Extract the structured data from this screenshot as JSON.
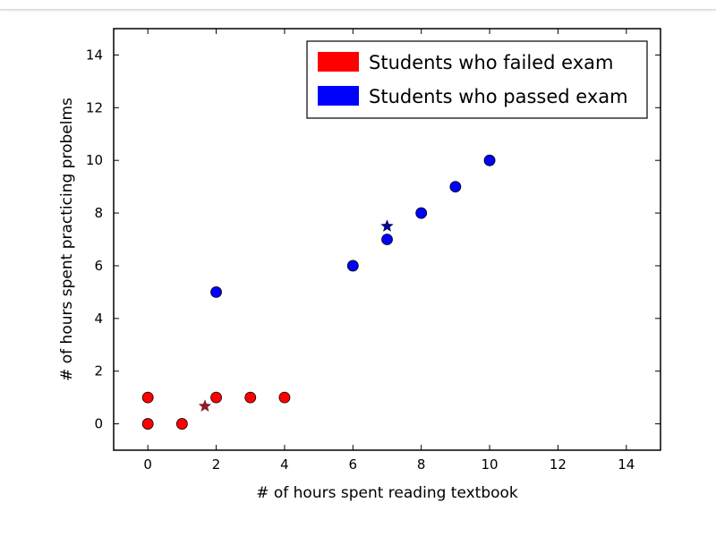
{
  "chart_data": {
    "type": "scatter",
    "xlabel": "# of hours spent reading textbook",
    "ylabel": "# of hours spent practicing probelms",
    "xlim": [
      -1,
      15
    ],
    "ylim": [
      -1,
      15
    ],
    "x_ticks": [
      0,
      2,
      4,
      6,
      8,
      10,
      12,
      14
    ],
    "y_ticks": [
      0,
      2,
      4,
      6,
      8,
      10,
      12,
      14
    ],
    "grid": false,
    "legend_position": "top-right",
    "series": [
      {
        "name": "Students who failed exam",
        "color": "#ff0000",
        "marker": "circle",
        "points": [
          [
            0,
            0
          ],
          [
            0,
            1
          ],
          [
            1,
            0
          ],
          [
            2,
            1
          ],
          [
            3,
            1
          ],
          [
            4,
            1
          ]
        ]
      },
      {
        "name": "Students who passed exam",
        "color": "#0000ff",
        "marker": "circle",
        "points": [
          [
            2,
            5
          ],
          [
            6,
            6
          ],
          [
            7,
            7
          ],
          [
            8,
            8
          ],
          [
            9,
            9
          ],
          [
            10,
            10
          ]
        ]
      }
    ],
    "centroids": [
      {
        "series": "Students who failed exam",
        "color": "#8b1a2a",
        "marker": "star",
        "x": 1.67,
        "y": 0.67
      },
      {
        "series": "Students who passed exam",
        "color": "#0a0a80",
        "marker": "star",
        "x": 7.0,
        "y": 7.5
      }
    ]
  }
}
